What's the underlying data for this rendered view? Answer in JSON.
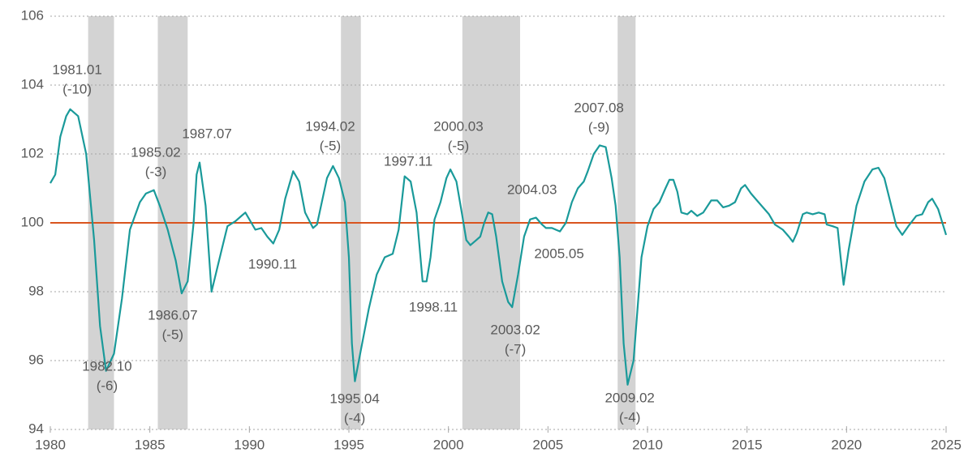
{
  "chart_data": {
    "type": "line",
    "xlim": [
      1980,
      2025
    ],
    "xticks": [
      1980,
      1985,
      1990,
      1995,
      2000,
      2005,
      2010,
      2015,
      2020,
      2025
    ],
    "ylim": [
      94,
      106
    ],
    "yticks": [
      94,
      96,
      98,
      100,
      102,
      104,
      106
    ],
    "grid": true,
    "reference_line": {
      "value": 100,
      "color": "#d9541e"
    },
    "shaded_regions": {
      "color": "#d3d3d3",
      "ranges": [
        [
          1981.9,
          1983.2
        ],
        [
          1985.4,
          1986.9
        ],
        [
          1994.6,
          1995.6
        ],
        [
          2000.7,
          2003.6
        ],
        [
          2008.5,
          2009.4
        ]
      ]
    },
    "series": [
      {
        "color": "#1a9a9a",
        "x": [
          1980.0,
          1980.25,
          1980.5,
          1980.8,
          1981.0,
          1981.4,
          1981.8,
          1982.2,
          1982.5,
          1982.8,
          1983.2,
          1983.6,
          1984.0,
          1984.5,
          1984.8,
          1985.2,
          1985.5,
          1985.9,
          1986.3,
          1986.6,
          1986.9,
          1987.2,
          1987.35,
          1987.5,
          1987.8,
          1988.1,
          1988.6,
          1988.9,
          1989.3,
          1989.6,
          1989.8,
          1990.1,
          1990.3,
          1990.6,
          1990.9,
          1991.2,
          1991.5,
          1991.8,
          1992.0,
          1992.2,
          1992.5,
          1992.8,
          1993.2,
          1993.4,
          1993.6,
          1993.9,
          1994.2,
          1994.5,
          1994.8,
          1995.0,
          1995.15,
          1995.3,
          1995.6,
          1996.0,
          1996.4,
          1996.8,
          1997.2,
          1997.5,
          1997.8,
          1998.1,
          1998.4,
          1998.7,
          1998.9,
          1999.1,
          1999.3,
          1999.6,
          1999.9,
          2000.1,
          2000.4,
          2000.7,
          2000.9,
          2001.1,
          2001.4,
          2001.6,
          2001.8,
          2002.0,
          2002.2,
          2002.4,
          2002.7,
          2003.0,
          2003.2,
          2003.5,
          2003.8,
          2004.1,
          2004.4,
          2004.7,
          2004.9,
          2005.2,
          2005.4,
          2005.6,
          2005.9,
          2006.2,
          2006.5,
          2006.8,
          2007.0,
          2007.3,
          2007.6,
          2007.9,
          2008.2,
          2008.4,
          2008.6,
          2008.8,
          2009.0,
          2009.3,
          2009.5,
          2009.7,
          2010.0,
          2010.3,
          2010.6,
          2010.9,
          2011.1,
          2011.3,
          2011.5,
          2011.7,
          2012.0,
          2012.2,
          2012.5,
          2012.8,
          2013.2,
          2013.5,
          2013.8,
          2014.1,
          2014.4,
          2014.7,
          2014.9,
          2015.2,
          2015.5,
          2015.8,
          2016.1,
          2016.4,
          2016.8,
          2017.1,
          2017.3,
          2017.5,
          2017.8,
          2018.0,
          2018.3,
          2018.6,
          2018.9,
          2019.0,
          2019.3,
          2019.55,
          2019.7,
          2019.85,
          2020.1,
          2020.5,
          2020.9,
          2021.3,
          2021.6,
          2021.9,
          2022.2,
          2022.5,
          2022.8,
          2023.1,
          2023.5,
          2023.8,
          2024.1,
          2024.3,
          2024.6,
          2025.0
        ],
        "values": [
          101.15,
          101.4,
          102.5,
          103.1,
          103.3,
          103.1,
          102.0,
          99.5,
          97.0,
          95.7,
          96.2,
          97.8,
          99.8,
          100.6,
          100.85,
          100.95,
          100.5,
          99.8,
          98.9,
          97.95,
          98.3,
          100.0,
          101.4,
          101.75,
          100.5,
          98.0,
          99.2,
          99.9,
          100.05,
          100.2,
          100.3,
          100.0,
          99.8,
          99.85,
          99.6,
          99.4,
          99.8,
          100.7,
          101.1,
          101.5,
          101.2,
          100.3,
          99.85,
          99.95,
          100.5,
          101.3,
          101.65,
          101.3,
          100.6,
          99.0,
          96.5,
          95.4,
          96.3,
          97.5,
          98.5,
          99.0,
          99.1,
          99.8,
          101.35,
          101.2,
          100.3,
          98.3,
          98.3,
          99.0,
          100.1,
          100.6,
          101.3,
          101.55,
          101.2,
          100.2,
          99.5,
          99.35,
          99.5,
          99.6,
          100.0,
          100.3,
          100.25,
          99.6,
          98.3,
          97.7,
          97.55,
          98.5,
          99.6,
          100.1,
          100.15,
          99.95,
          99.85,
          99.85,
          99.8,
          99.75,
          100.0,
          100.6,
          101.0,
          101.2,
          101.5,
          102.0,
          102.25,
          102.2,
          101.3,
          100.5,
          99.0,
          96.5,
          95.3,
          96.0,
          97.5,
          99.0,
          99.9,
          100.4,
          100.6,
          101.0,
          101.25,
          101.25,
          100.9,
          100.3,
          100.25,
          100.35,
          100.2,
          100.3,
          100.65,
          100.65,
          100.45,
          100.5,
          100.6,
          101.0,
          101.1,
          100.85,
          100.65,
          100.45,
          100.25,
          99.95,
          99.8,
          99.6,
          99.45,
          99.7,
          100.25,
          100.3,
          100.25,
          100.3,
          100.25,
          99.95,
          99.9,
          99.85,
          99.0,
          98.2,
          99.2,
          100.5,
          101.2,
          101.55,
          101.6,
          101.3,
          100.6,
          99.9,
          99.65,
          99.9,
          100.2,
          100.25,
          100.6,
          100.7,
          100.4,
          99.65
        ]
      }
    ],
    "annotations": [
      {
        "lines": [
          "1981.01",
          "(-10)"
        ],
        "x": 1981.35,
        "y": 104.42
      },
      {
        "lines": [
          "1982.10",
          "(-6)"
        ],
        "x": 1982.85,
        "y": 95.81
      },
      {
        "lines": [
          "1985.02",
          "(-3)"
        ],
        "x": 1985.3,
        "y": 102.02
      },
      {
        "lines": [
          "1986.07",
          "(-5)"
        ],
        "x": 1986.15,
        "y": 97.29
      },
      {
        "lines": [
          "1987.07"
        ],
        "x": 1987.87,
        "y": 102.56
      },
      {
        "lines": [
          "1990.11"
        ],
        "x": 1991.17,
        "y": 98.78
      },
      {
        "lines": [
          "1994.02",
          "(-5)"
        ],
        "x": 1994.06,
        "y": 102.78
      },
      {
        "lines": [
          "1995.04",
          "(-4)"
        ],
        "x": 1995.29,
        "y": 94.87
      },
      {
        "lines": [
          "1997.11"
        ],
        "x": 1997.98,
        "y": 101.76
      },
      {
        "lines": [
          "1998.11"
        ],
        "x": 1999.24,
        "y": 97.53
      },
      {
        "lines": [
          "2000.03",
          "(-5)"
        ],
        "x": 2000.5,
        "y": 102.78
      },
      {
        "lines": [
          "2003.02",
          "(-7)"
        ],
        "x": 2003.36,
        "y": 96.87
      },
      {
        "lines": [
          "2004.03"
        ],
        "x": 2004.2,
        "y": 100.94
      },
      {
        "lines": [
          "2005.05"
        ],
        "x": 2005.56,
        "y": 99.08
      },
      {
        "lines": [
          "2007.08",
          "(-9)"
        ],
        "x": 2007.56,
        "y": 103.32
      },
      {
        "lines": [
          "2009.02",
          "(-4)"
        ],
        "x": 2009.11,
        "y": 94.89
      }
    ]
  }
}
